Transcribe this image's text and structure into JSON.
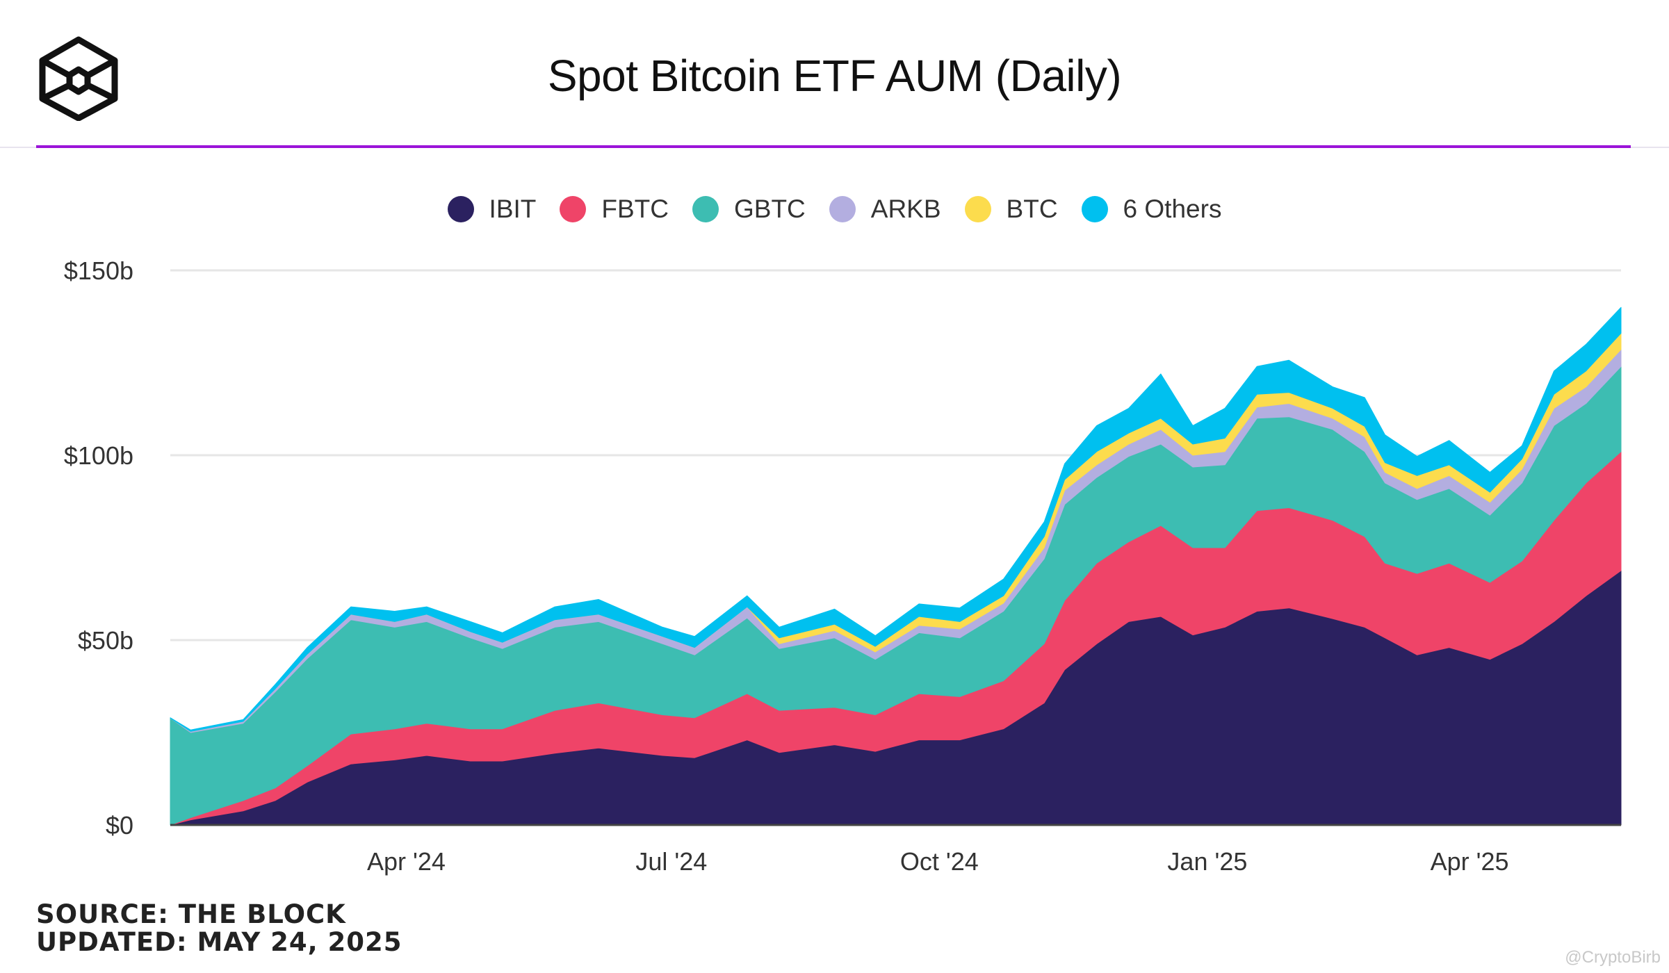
{
  "header": {
    "title": "Spot Bitcoin ETF AUM (Daily)",
    "logo": "The Block logo"
  },
  "footer": {
    "source": "SOURCE: THE BLOCK",
    "updated": "UPDATED: MAY 24, 2025"
  },
  "watermark": "@CryptoBirb",
  "colors": {
    "accent_divider": "#9b14d8"
  },
  "chart_data": {
    "type": "area",
    "stacked": true,
    "title": "Spot Bitcoin ETF AUM (Daily)",
    "xlabel": "",
    "ylabel": "",
    "ylim": [
      0,
      150
    ],
    "xlim": [
      "2024-01-11",
      "2025-05-23"
    ],
    "grid": true,
    "legend_position": "top",
    "y_ticks": [
      {
        "value": 0,
        "label": "$0"
      },
      {
        "value": 50,
        "label": "$50b"
      },
      {
        "value": 100,
        "label": "$100b"
      },
      {
        "value": 150,
        "label": "$150b"
      }
    ],
    "x_ticks": [
      {
        "date": "2024-04-01",
        "label": "Apr '24"
      },
      {
        "date": "2024-07-01",
        "label": "Jul '24"
      },
      {
        "date": "2024-10-01",
        "label": "Oct '24"
      },
      {
        "date": "2025-01-01",
        "label": "Jan '25"
      },
      {
        "date": "2025-04-01",
        "label": "Apr '25"
      }
    ],
    "x": [
      "2024-01-11",
      "2024-01-18",
      "2024-02-05",
      "2024-02-16",
      "2024-02-27",
      "2024-03-13",
      "2024-03-28",
      "2024-04-08",
      "2024-04-23",
      "2024-05-04",
      "2024-05-22",
      "2024-06-06",
      "2024-06-28",
      "2024-07-09",
      "2024-07-27",
      "2024-08-07",
      "2024-08-26",
      "2024-09-09",
      "2024-09-24",
      "2024-10-08",
      "2024-10-23",
      "2024-11-06",
      "2024-11-13",
      "2024-11-24",
      "2024-12-05",
      "2024-12-16",
      "2024-12-27",
      "2025-01-07",
      "2025-01-18",
      "2025-01-29",
      "2025-02-13",
      "2025-02-24",
      "2025-03-03",
      "2025-03-14",
      "2025-03-25",
      "2025-04-08",
      "2025-04-19",
      "2025-04-30",
      "2025-05-11",
      "2025-05-23"
    ],
    "series": [
      {
        "name": "IBIT",
        "color": "#2b2160",
        "values": [
          0,
          1.4,
          3.8,
          6.6,
          11.6,
          16.5,
          17.6,
          18.8,
          17.3,
          17.3,
          19.4,
          20.8,
          18.8,
          18.2,
          23,
          19.6,
          21.7,
          19.9,
          23,
          23,
          26,
          33,
          42,
          49,
          55,
          56.4,
          51.4,
          53.5,
          57.8,
          58.7,
          55.8,
          53.5,
          50.6,
          46,
          48,
          44.8,
          49,
          55,
          62,
          68.8
        ]
      },
      {
        "name": "FBTC",
        "color": "#ef4468",
        "values": [
          0,
          0.6,
          2.8,
          3.4,
          4.4,
          8.1,
          8.4,
          8.7,
          8.7,
          8.7,
          11.6,
          12.2,
          11,
          10.8,
          12.5,
          11.4,
          10.1,
          9.9,
          12.5,
          11.7,
          13,
          16,
          18.7,
          21.8,
          21.6,
          24.6,
          23.6,
          21.5,
          27.2,
          27.1,
          26.6,
          24.5,
          20.2,
          22,
          22.8,
          20.8,
          22.4,
          27.4,
          30.5,
          32.2
        ]
      },
      {
        "name": "GBTC",
        "color": "#3dbdb2",
        "values": [
          28.9,
          23,
          20.9,
          26,
          29,
          30.9,
          27.5,
          27.5,
          24.6,
          21.7,
          22.5,
          22,
          19.2,
          17,
          20.5,
          16.7,
          18.8,
          15,
          16.5,
          15.9,
          18.8,
          23,
          26,
          23.2,
          23.1,
          22,
          21.8,
          22.4,
          25,
          24.6,
          24.6,
          23,
          21.7,
          20,
          20.2,
          18.2,
          21.1,
          25.6,
          21.5,
          23
        ]
      },
      {
        "name": "ARKB",
        "color": "#b3aee0",
        "values": [
          0,
          0.3,
          0.5,
          0.8,
          1.2,
          1.5,
          1.5,
          2,
          1.7,
          1.7,
          2,
          2,
          2,
          2,
          3,
          1.3,
          2,
          2,
          2,
          2.4,
          2.2,
          3,
          3.8,
          3.4,
          3.3,
          4,
          3.2,
          3.6,
          3,
          3.6,
          3,
          4,
          2.9,
          3,
          3.5,
          3.5,
          3.7,
          4.7,
          4.5,
          4.6
        ]
      },
      {
        "name": "BTC",
        "color": "#fcdc4d",
        "values": [
          0,
          0,
          0,
          0,
          0,
          0,
          0,
          0,
          0,
          0,
          0,
          0,
          0,
          0,
          0,
          1.6,
          1.7,
          1.5,
          2.4,
          2,
          2,
          3,
          2.9,
          3.6,
          3,
          3,
          3,
          3.6,
          3.5,
          3,
          2.7,
          2.8,
          2.6,
          3.5,
          2.9,
          2.7,
          2.8,
          3.8,
          4.3,
          4.4
        ]
      },
      {
        "name": "6 Others",
        "color": "#00c0ef",
        "values": [
          0.1,
          0.4,
          0.5,
          1.2,
          1.8,
          2,
          2.8,
          2,
          2.7,
          2.6,
          3.5,
          4,
          2.5,
          3,
          3,
          2.9,
          4.1,
          2.9,
          3.4,
          3.7,
          4.5,
          4,
          4.3,
          7,
          6.7,
          12,
          5,
          8.1,
          7.5,
          8.7,
          5.8,
          7.8,
          7.5,
          5.2,
          6.6,
          5.4,
          3.6,
          6.3,
          7.2,
          7
        ]
      }
    ]
  }
}
